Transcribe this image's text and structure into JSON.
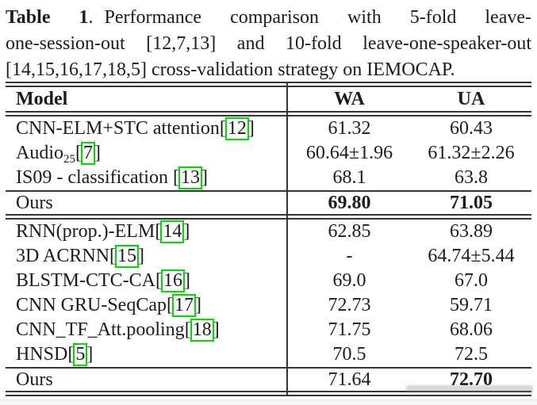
{
  "colors": {
    "text": "#1c1c1c",
    "rule": "#363636",
    "citation-box": "#00dd00",
    "page-bg": "#ffffff",
    "edge-strip": "#f6f6f8"
  },
  "caption": {
    "label": "Table 1",
    "label_suffix": ".",
    "line1_rest": "Performance comparison with 5-fold leave-",
    "line2": "one-session-out [12,7,13] and 10-fold leave-one-speaker-out",
    "line3": "[14,15,16,17,18,5] cross-validation strategy on IEMOCAP."
  },
  "table": {
    "header": {
      "model": "Model",
      "wa": "WA",
      "ua": "UA"
    },
    "rows": [
      {
        "name": "CNN-ELM+STC attention",
        "sub": "",
        "lb": "[",
        "cite": "12",
        "rb": "]",
        "wa": "61.32",
        "ua": "60.43"
      },
      {
        "name": "Audio",
        "sub": "25",
        "lb": "[",
        "cite": "7",
        "rb": "]",
        "wa": "60.64±1.96",
        "ua": "61.32±2.26"
      },
      {
        "name": "IS09 - classification ",
        "sub": "",
        "lb": "[",
        "cite": "13",
        "rb": "]",
        "wa": "68.1",
        "ua": "63.8"
      },
      {
        "name": "Ours",
        "sub": "",
        "lb": "",
        "cite": "",
        "rb": "",
        "wa": "69.80",
        "ua": "71.05"
      },
      {
        "name": "RNN(prop.)-ELM",
        "sub": "",
        "lb": "[",
        "cite": "14",
        "rb": "]",
        "wa": "62.85",
        "ua": "63.89"
      },
      {
        "name": "3D ACRNN",
        "sub": "",
        "lb": "[",
        "cite": "15",
        "rb": "]",
        "wa": "-",
        "ua": "64.74±5.44"
      },
      {
        "name": "BLSTM-CTC-CA",
        "sub": "",
        "lb": "[",
        "cite": "16",
        "rb": "]",
        "wa": "69.0",
        "ua": "67.0"
      },
      {
        "name": "CNN GRU-SeqCap",
        "sub": "",
        "lb": "[",
        "cite": "17",
        "rb": "]",
        "wa": "72.73",
        "ua": "59.71"
      },
      {
        "name": "CNN_TF_Att.pooling",
        "sub": "",
        "lb": "[",
        "cite": "18",
        "rb": "]",
        "wa": "71.75",
        "ua": "68.06"
      },
      {
        "name": "HNSD",
        "sub": "",
        "lb": "[",
        "cite": "5",
        "rb": "]",
        "wa": "70.5",
        "ua": "72.5"
      },
      {
        "name": "Ours",
        "sub": "",
        "lb": "",
        "cite": "",
        "rb": "",
        "wa": "71.64",
        "ua": "72.70"
      }
    ]
  }
}
